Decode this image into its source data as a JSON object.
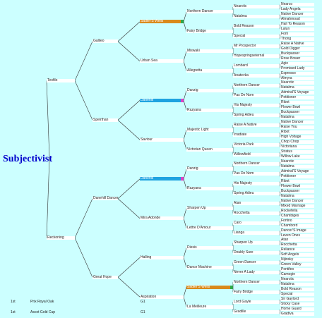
{
  "subject": "Subjectivist",
  "gen1": [
    "Teofilo",
    "Reckoning"
  ],
  "gen2": [
    "Galileo",
    "Speirthan",
    "Danehill Dancer",
    "Great Hope"
  ],
  "gen3": [
    "Sadler'S Wells",
    "Urban Sea",
    "Danehill",
    "Saviour",
    "Danehill",
    "Mira Adonde",
    "Halling",
    "Aspiration"
  ],
  "gen4": [
    "Northern Dancer",
    "Fairy Bridge",
    "Miswaki",
    "Allegretta",
    "Danzig",
    "Razyana",
    "Majestic Light",
    "Victorian Queen",
    "Danzig",
    "Razyana",
    "Sharpen Up",
    "Lettre D'Amour",
    "Diesis",
    "Dance Machine",
    "Sadler'S Wells",
    "La Meilleure"
  ],
  "gen5": [
    "Nearctic",
    "Natalma",
    "Bold Reason",
    "Special",
    "Mr Prospector",
    "Hopespringseternal",
    "Lombard",
    "Anatevka",
    "Northern Dancer",
    "Pas De Nom",
    "His Majesty",
    "Spring Adieu",
    "Raise A Native",
    "Irradiate",
    "Victoria Park",
    "Willowfield",
    "Northern Dancer",
    "Pas De Nom",
    "His Majesty",
    "Spring Adieu",
    "Atan",
    "Rocchetta",
    "Caro",
    "Lianga",
    "Sharpen Up",
    "Doubly Sure",
    "Green Dancer",
    "Never A Lady",
    "Northern Dancer",
    "Fairy Bridge",
    "Lord Gayle",
    "Gradille"
  ],
  "gen6": [
    "Nearco",
    "Lady Angela",
    "Native Dancer",
    "Almahmoud",
    "Hail To Reason",
    "Lalun",
    "Forli",
    "Thong",
    "Raise A Native",
    "Gold Digger",
    "Buckpasser",
    "Rose Bower",
    "Agio",
    "Promised Lady",
    "Espresso",
    "Almyra",
    "Nearctic",
    "Natalma",
    "Admiral'S Voyage",
    "Petitioner",
    "Ribot",
    "Flower Bowl",
    "Buckpasser",
    "Natalma",
    "Native Dancer",
    "Raise You",
    "Ribot",
    "High Voltage",
    "Chop Chop",
    "Victoriana",
    "Stratus",
    "Willow Lake",
    "Nearctic",
    "Natalma",
    "Admiral'S Voyage",
    "Petitioner",
    "Ribot",
    "Flower Bowl",
    "Buckpasser",
    "Natalma",
    "Native Dancer",
    "Mixed Marriage",
    "Rockefella",
    "Chambiges",
    "Fortino",
    "Chambord",
    "Dancer'S Image",
    "Leven Ones",
    "Atan",
    "Rocchetta",
    "Reliance",
    "Soft Angels",
    "Nijinsky",
    "Green Valley",
    "Pontifex",
    "Camogie",
    "Nearctic",
    "Natalma",
    "Bold Reason",
    "Special",
    "Sir Gaylord",
    "Sticky Case",
    "Home Guard",
    "Gradiva"
  ],
  "results": [
    {
      "place": "1st",
      "race": "Prix Royal Oak",
      "grade": "G1"
    },
    {
      "place": "1st",
      "race": "Ascot Gold Cup",
      "grade": "G1"
    }
  ],
  "colors": {
    "background": "#ccffff",
    "duplicate_orange": "#d98a1c",
    "duplicate_blue": "#1fa3e0",
    "marker_green": "#2ea84a",
    "marker_pink": "#e040c8",
    "subject": "#0000cc"
  },
  "highlights": [
    {
      "gen": 3,
      "index": 0,
      "color": "orange",
      "marker": "green"
    },
    {
      "gen": 3,
      "index": 2,
      "color": "blue",
      "marker": "pink"
    },
    {
      "gen": 3,
      "index": 4,
      "color": "blue",
      "marker": "pink"
    },
    {
      "gen": 4,
      "index": 14,
      "color": "orange",
      "marker": "green"
    }
  ]
}
